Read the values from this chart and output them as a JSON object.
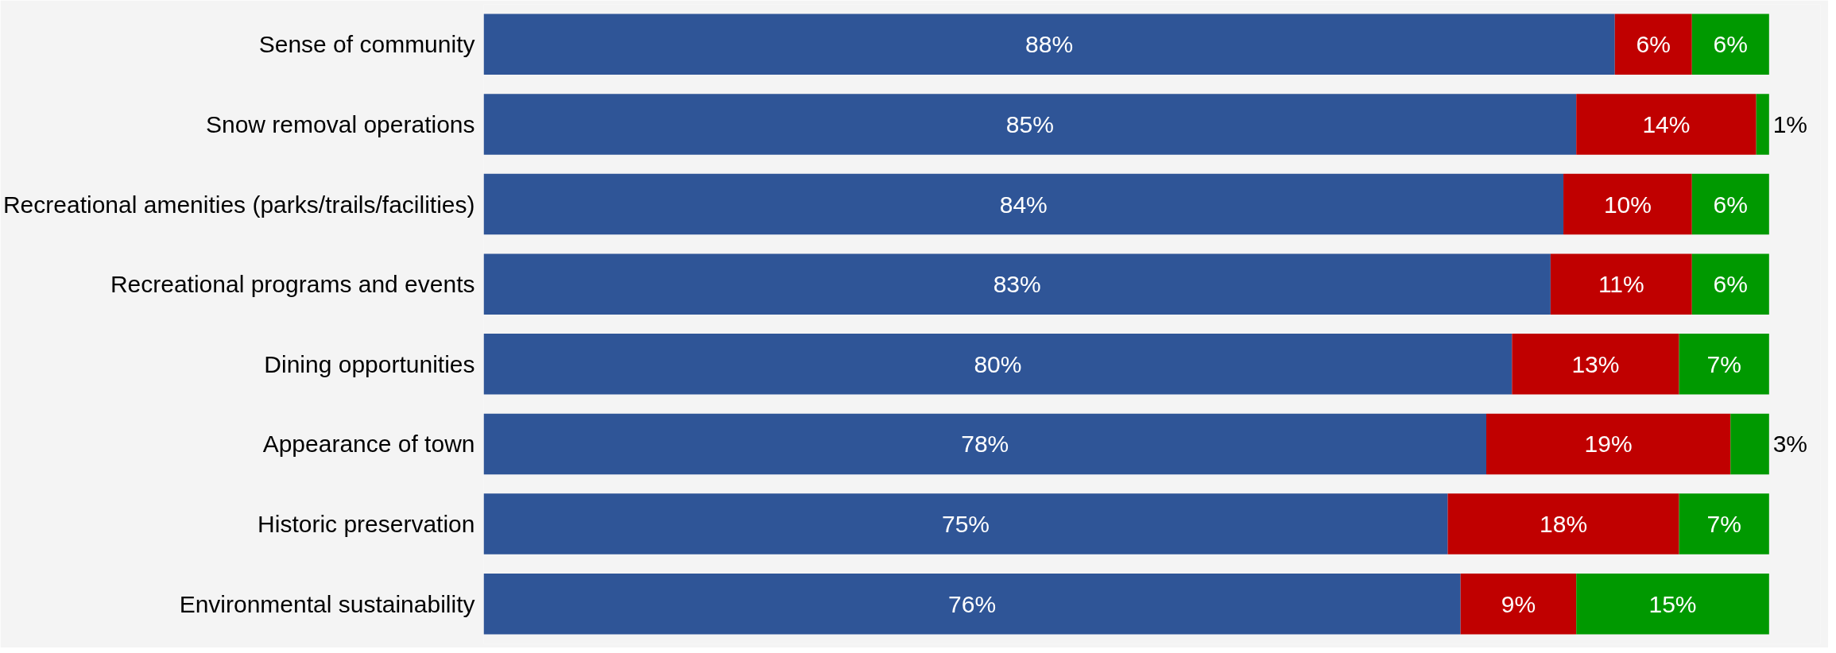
{
  "chart_data": {
    "type": "bar",
    "orientation": "horizontal",
    "stacked": true,
    "categories": [
      "Sense of community",
      "Snow removal operations",
      "Recreational amenities (parks/trails/facilities)",
      "Recreational programs and events",
      "Dining opportunities",
      "Appearance of town",
      "Historic preservation",
      "Environmental sustainability"
    ],
    "series": [
      {
        "color": "#2f5597",
        "values": [
          88,
          85,
          84,
          83,
          80,
          78,
          75,
          76
        ],
        "value_labels": [
          "88%",
          "85%",
          "84%",
          "83%",
          "80%",
          "78%",
          "75%",
          "76%"
        ]
      },
      {
        "color": "#c00000",
        "values": [
          6,
          14,
          10,
          11,
          13,
          19,
          18,
          9
        ],
        "value_labels": [
          "6%",
          "14%",
          "10%",
          "11%",
          "13%",
          "19%",
          "18%",
          "9%"
        ]
      },
      {
        "color": "#009900",
        "values": [
          6,
          1,
          6,
          6,
          7,
          3,
          7,
          15
        ],
        "value_labels": [
          "6%",
          "1%",
          "6%",
          "6%",
          "7%",
          "3%",
          "7%",
          "15%"
        ]
      }
    ],
    "xlim": [
      0,
      104
    ],
    "tick_labels": "y"
  }
}
